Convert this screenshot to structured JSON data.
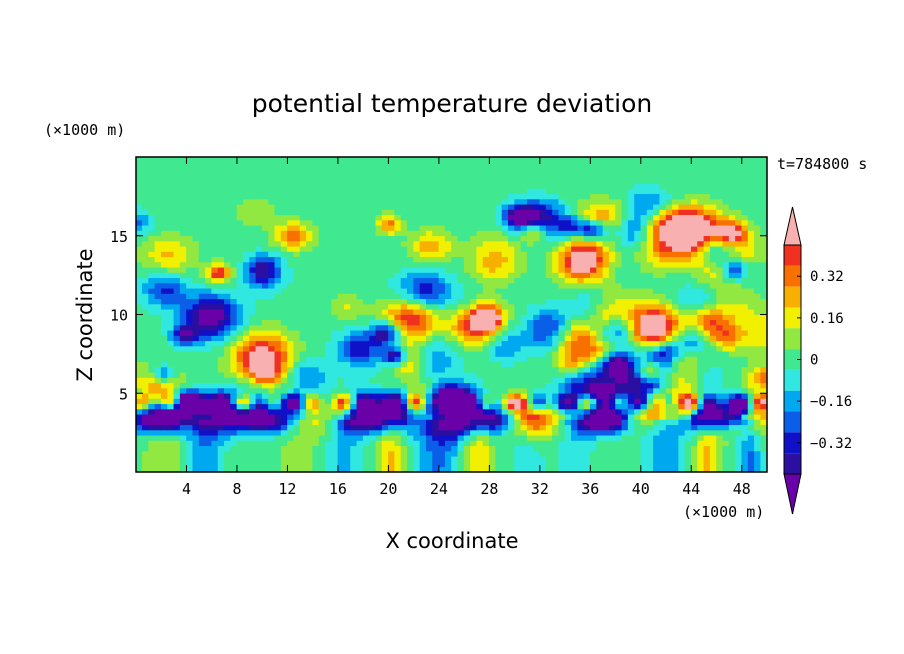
{
  "chart_data": {
    "type": "heatmap",
    "title": "potential temperature deviation",
    "xlabel": "X coordinate",
    "ylabel": "Z coordinate",
    "x_unit": "(×1000 m)",
    "y_unit": "(×1000 m)",
    "time_label": "t=784800 s",
    "xlim": [
      0,
      50
    ],
    "ylim": [
      0,
      20
    ],
    "x_ticks": [
      4,
      8,
      12,
      16,
      20,
      24,
      28,
      32,
      36,
      40,
      44,
      48
    ],
    "y_ticks": [
      5,
      10,
      15
    ],
    "colorbar": {
      "levels": [
        -0.48,
        -0.4,
        -0.32,
        -0.24,
        -0.16,
        -0.08,
        0,
        0.08,
        0.16,
        0.24,
        0.32,
        0.4,
        0.48
      ],
      "tick_values": [
        0.32,
        0.16,
        0,
        -0.16,
        -0.32
      ],
      "tick_labels": [
        "0.32",
        "0.16",
        "0",
        "−0.16",
        "−0.32"
      ],
      "colors": [
        "#6a00a8",
        "#2b0fa0",
        "#1010c8",
        "#0a5ee8",
        "#00a8f0",
        "#30e8e0",
        "#40e890",
        "#90e840",
        "#f0f000",
        "#f8b000",
        "#f87000",
        "#f03020",
        "#f8b0b0"
      ],
      "extend": "both"
    },
    "colors": {
      "highest": "#f8b0b0",
      "lowest": "#6a00a8",
      "upper_layer": "#40e890"
    }
  }
}
